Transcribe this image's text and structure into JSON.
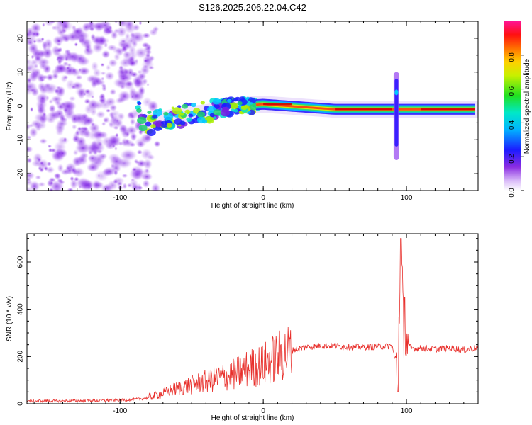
{
  "figure_title": "S126.2025.206.22.04.C42",
  "chart_data": [
    {
      "type": "heatmap",
      "xlabel": "Height of straight line (km)",
      "ylabel": "Frequency (Hz)",
      "xlim": [
        -165,
        150
      ],
      "ylim": [
        -25,
        25
      ],
      "x_ticks": [
        -100,
        0,
        100
      ],
      "y_ticks": [
        -20,
        -10,
        0,
        10,
        20
      ],
      "colorbar": {
        "label": "Normalized spectral amplitude",
        "range": [
          0,
          1
        ],
        "ticks": [
          0.0,
          0.2,
          0.4,
          0.6,
          0.8
        ],
        "colormap": "rainbow (purple-blue-cyan-green-yellow-red-magenta)"
      },
      "features": {
        "noise_region_x": [
          -165,
          -80
        ],
        "signal_band_center_hz": [
          [
            -85,
            -5.5
          ],
          [
            -60,
            -3
          ],
          [
            -40,
            -2
          ],
          [
            -20,
            0
          ],
          [
            0,
            0.5
          ],
          [
            50,
            -1
          ],
          [
            100,
            -1
          ],
          [
            150,
            -1
          ]
        ],
        "vertical_spike_x": 93,
        "vertical_spike_freq_range": [
          -16,
          10
        ]
      }
    },
    {
      "type": "line",
      "xlabel": "Height of straight line (km)",
      "ylabel": "SNR (10 * v/v)",
      "xlim": [
        -165,
        150
      ],
      "ylim": [
        0,
        720
      ],
      "x_ticks": [
        -100,
        0,
        100
      ],
      "y_ticks": [
        0,
        200,
        400,
        600
      ],
      "color": "#e8302c",
      "x": [
        -165,
        -140,
        -120,
        -100,
        -90,
        -80,
        -70,
        -60,
        -50,
        -40,
        -30,
        -20,
        -10,
        0,
        10,
        20,
        30,
        40,
        50,
        60,
        70,
        80,
        90,
        94,
        96,
        98,
        100,
        104,
        110,
        120,
        130,
        140,
        150
      ],
      "y": [
        12,
        12,
        13,
        15,
        18,
        25,
        45,
        65,
        80,
        95,
        110,
        125,
        150,
        165,
        200,
        225,
        240,
        245,
        245,
        240,
        240,
        242,
        245,
        120,
        720,
        300,
        250,
        235,
        235,
        232,
        235,
        228,
        238
      ]
    }
  ]
}
